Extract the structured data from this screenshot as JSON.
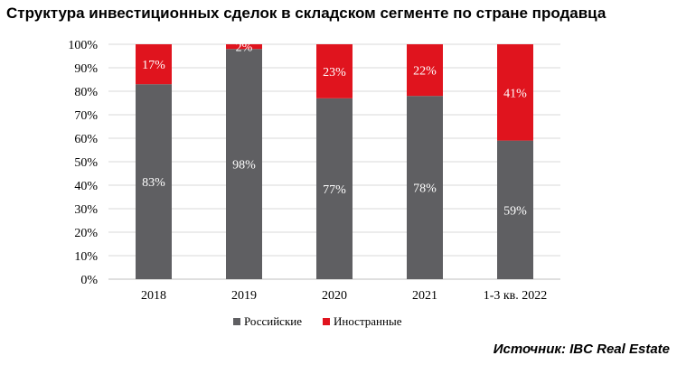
{
  "title": "Структура инвестиционных сделок в складском сегменте по стране продавца",
  "source": "Источник: IBC Real Estate",
  "colors": {
    "russian": "#5f5f62",
    "foreign": "#e0141e",
    "grid": "#d9d9d9",
    "axis": "#bfbfbf"
  },
  "chart_data": {
    "type": "bar",
    "stacked": true,
    "title": "Структура инвестиционных сделок в складском сегменте по стране продавца",
    "xlabel": "",
    "ylabel": "",
    "ylim": [
      0,
      100
    ],
    "yticks": [
      "0%",
      "10%",
      "20%",
      "30%",
      "40%",
      "50%",
      "60%",
      "70%",
      "80%",
      "90%",
      "100%"
    ],
    "categories": [
      "2018",
      "2019",
      "2020",
      "2021",
      "1-3 кв. 2022"
    ],
    "series": [
      {
        "name": "Российские",
        "values": [
          83,
          98,
          77,
          78,
          59
        ],
        "labels": [
          "83%",
          "98%",
          "77%",
          "78%",
          "59%"
        ]
      },
      {
        "name": "Иностранные",
        "values": [
          17,
          2,
          23,
          22,
          41
        ],
        "labels": [
          "17%",
          "2%",
          "23%",
          "22%",
          "41%"
        ]
      }
    ],
    "legend": [
      "Российские",
      "Иностранные"
    ],
    "legend_position": "bottom",
    "grid": true
  }
}
